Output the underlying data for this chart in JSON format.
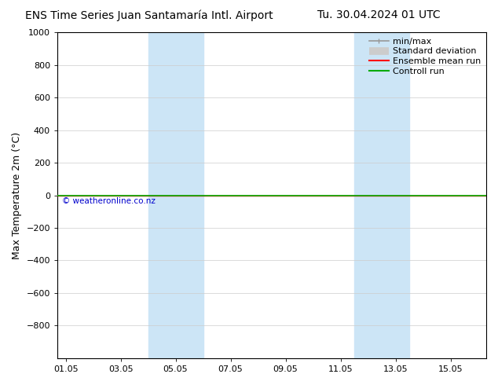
{
  "title_left": "ENS Time Series Juan Santamaría Intl. Airport",
  "title_right": "Tu. 30.04.2024 01 UTC",
  "ylabel": "Max Temperature 2m (°C)",
  "ylim_top": -1000,
  "ylim_bottom": 1000,
  "yticks": [
    -800,
    -600,
    -400,
    -200,
    0,
    200,
    400,
    600,
    800,
    1000
  ],
  "xtick_labels": [
    "01.05",
    "03.05",
    "05.05",
    "07.05",
    "09.05",
    "11.05",
    "13.05",
    "15.05"
  ],
  "xtick_positions": [
    0,
    2,
    4,
    6,
    8,
    10,
    12,
    14
  ],
  "xlim": [
    -0.3,
    15.3
  ],
  "shaded_bands": [
    {
      "start": 3.0,
      "end": 5.0
    },
    {
      "start": 10.5,
      "end": 12.5
    }
  ],
  "shade_color": "#cce5f6",
  "control_run_y": 0,
  "ensemble_mean_y": 0,
  "line_color_control": "#00aa00",
  "line_color_ensemble": "#ff0000",
  "copyright_text": "© weatheronline.co.nz",
  "copyright_color": "#0000cc",
  "background_color": "#ffffff",
  "grid_color": "#cccccc",
  "title_fontsize": 10,
  "ylabel_fontsize": 9,
  "tick_fontsize": 8,
  "legend_fontsize": 8
}
